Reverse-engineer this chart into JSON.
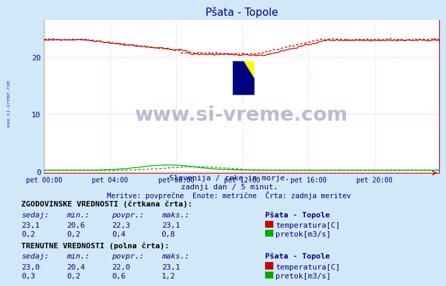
{
  "title": "Pšata - Topole",
  "bg_color": "#d0e8f8",
  "plot_bg_color": "#ffffff",
  "grid_color_h": "#ffcccc",
  "grid_color_v": "#ffcccc",
  "title_color": "#000080",
  "x_ticks": [
    "pet 00:00",
    "pet 04:00",
    "pet 08:00",
    "pet 12:00",
    "pet 16:00",
    "pet 20:00"
  ],
  "x_tick_positions": [
    0,
    48,
    96,
    144,
    192,
    240
  ],
  "y_ticks": [
    0,
    10,
    20
  ],
  "ylim": [
    -0.3,
    26.5
  ],
  "xlim": [
    0,
    287
  ],
  "subtitle1": "Slovenija / reke in morje.",
  "subtitle2": "zadnji dan / 5 minut.",
  "subtitle3": "Meritve: povprečne  Enote: metrične  Črta: zadnja meritev",
  "watermark": "www.si-vreme.com",
  "side_text": "www.si-vreme.com",
  "legend_title_hist": "ZGODOVINSKE VREDNOSTI (črtkana črta):",
  "legend_title_curr": "TRENUTNE VREDNOSTI (polna črta):",
  "legend_station": "Pšata - Topole",
  "headers": [
    "sedaj:",
    "min.:",
    "povpr.:",
    "maks.:"
  ],
  "hist_temp": {
    "sedaj": "23,1",
    "min": "20,6",
    "povpr": "22,3",
    "maks": "23,1"
  },
  "hist_flow": {
    "sedaj": "0,2",
    "min": "0,2",
    "povpr": "0,4",
    "maks": "0,8"
  },
  "curr_temp": {
    "sedaj": "23,0",
    "min": "20,4",
    "povpr": "22,0",
    "maks": "23,1"
  },
  "curr_flow": {
    "sedaj": "0,3",
    "min": "0,2",
    "povpr": "0,6",
    "maks": "1,2"
  },
  "temp_color": "#cc0000",
  "flow_color": "#00aa00",
  "temp_label": "temperatura[C]",
  "flow_label": "pretok[m3/s]"
}
